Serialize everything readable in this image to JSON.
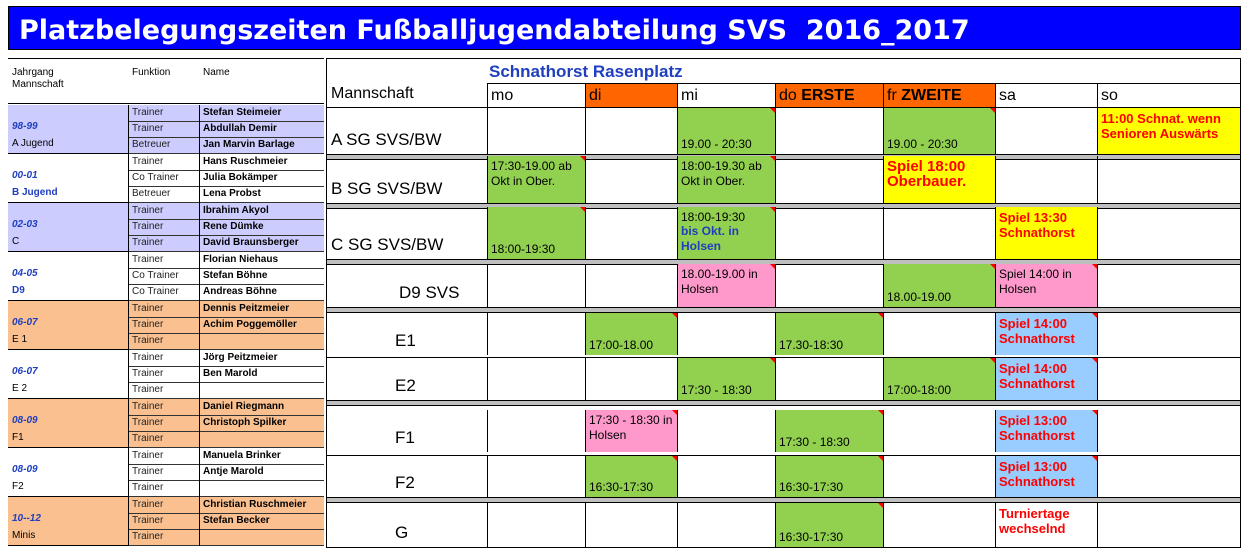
{
  "title": "Platzbelegungszeiten Fußballjugendabteilung SVS  2016_2017",
  "roster": {
    "headers": {
      "col1_line1": "Jahrgang",
      "col1_line2": "Mannschaft",
      "col2": "Funktion",
      "col3": "Name"
    },
    "groups": [
      {
        "year": "98-99",
        "team": "A Jugend",
        "team_blue": false,
        "color": "#ccccff",
        "rows": [
          {
            "funktion": "Trainer",
            "name": "Stefan Steimeier"
          },
          {
            "funktion": "Trainer",
            "name": "Abdullah Demir"
          },
          {
            "funktion": "Betreuer",
            "name": "Jan Marvin Barlage"
          }
        ]
      },
      {
        "year": "00-01",
        "team": "B  Jugend",
        "team_blue": true,
        "color": "#ffffff",
        "rows": [
          {
            "funktion": "Trainer",
            "name": "Hans Ruschmeier"
          },
          {
            "funktion": "Co Trainer",
            "name": "Julia Bokämper"
          },
          {
            "funktion": "Betreuer",
            "name": "Lena Probst"
          }
        ]
      },
      {
        "year": "02-03",
        "team": "C",
        "team_blue": false,
        "color": "#ccccff",
        "rows": [
          {
            "funktion": "Trainer",
            "name": "Ibrahim Akyol"
          },
          {
            "funktion": "Trainer",
            "name": "Rene Dümke"
          },
          {
            "funktion": "Trainer",
            "name": "David Braunsberger"
          }
        ]
      },
      {
        "year": "04-05",
        "team": "D9",
        "team_blue": true,
        "color": "#ffffff",
        "rows": [
          {
            "funktion": "Trainer",
            "name": "Florian Niehaus"
          },
          {
            "funktion": "Co Trainer",
            "name": "Stefan Böhne"
          },
          {
            "funktion": "Co Trainer",
            "name": "Andreas Böhne"
          }
        ]
      },
      {
        "year": "06-07",
        "team": "E 1",
        "team_blue": false,
        "color": "#fac090",
        "rows": [
          {
            "funktion": "Trainer",
            "name": "Dennis Peitzmeier"
          },
          {
            "funktion": "Trainer",
            "name": "Achim Poggemöller"
          },
          {
            "funktion": "Trainer",
            "name": ""
          }
        ]
      },
      {
        "year": "06-07",
        "team": "E 2",
        "team_blue": false,
        "color": "#ffffff",
        "rows": [
          {
            "funktion": "Trainer",
            "name": "Jörg Peitzmeier"
          },
          {
            "funktion": "Trainer",
            "name": "Ben Marold"
          },
          {
            "funktion": "Trainer",
            "name": ""
          }
        ]
      },
      {
        "year": "08-09",
        "team": "F1",
        "team_blue": false,
        "color": "#fac090",
        "rows": [
          {
            "funktion": "Trainer",
            "name": "Daniel Riegmann"
          },
          {
            "funktion": "Trainer",
            "name": "Christoph Spilker"
          },
          {
            "funktion": "Trainer",
            "name": ""
          }
        ]
      },
      {
        "year": "08-09",
        "team": "F2",
        "team_blue": false,
        "color": "#ffffff",
        "rows": [
          {
            "funktion": "Trainer",
            "name": "Manuela Brinker"
          },
          {
            "funktion": "Trainer",
            "name": "Antje Marold"
          },
          {
            "funktion": "Trainer",
            "name": ""
          }
        ]
      },
      {
        "year": "10--12",
        "team": "Minis",
        "team_blue": false,
        "color": "#fac090",
        "rows": [
          {
            "funktion": "Trainer",
            "name": "Christian Ruschmeier"
          },
          {
            "funktion": "Trainer",
            "name": "Stefan Becker"
          },
          {
            "funktion": "Trainer",
            "name": ""
          }
        ]
      }
    ]
  },
  "schedule": {
    "location": "Schnathorst  Rasenplatz",
    "header_team": "Mannschaft",
    "days": [
      {
        "prefix": "mo",
        "extra": "",
        "color": ""
      },
      {
        "prefix": "di",
        "extra": "",
        "color": "#ff6600"
      },
      {
        "prefix": "mi",
        "extra": "",
        "color": ""
      },
      {
        "prefix": "do",
        "extra": "ERSTE",
        "color": "#ff6600"
      },
      {
        "prefix": "fr",
        "extra": "ZWEITE",
        "color": "#ff6600"
      },
      {
        "prefix": "sa",
        "extra": "",
        "color": ""
      },
      {
        "prefix": "so",
        "extra": "",
        "color": ""
      }
    ],
    "rows": [
      {
        "team": "A   SG SVS/BW",
        "cells": [
          {
            "text": "",
            "color": ""
          },
          {
            "text": "",
            "color": ""
          },
          {
            "text": "19.00 - 20:30",
            "color": "green"
          },
          {
            "text": "",
            "color": ""
          },
          {
            "text": "19.00 - 20:30",
            "color": "green"
          },
          {
            "text": "",
            "color": ""
          },
          {
            "text": "11:00 Schnat. wenn Senioren Auswärts",
            "color": "yellow",
            "style": "red-bold"
          }
        ]
      },
      {
        "team": "B   SG SVS/BW",
        "cells": [
          {
            "text": "17:30-19.00 ab Okt in Ober.",
            "color": "green"
          },
          {
            "text": "",
            "color": ""
          },
          {
            "text": "18:00-19.30 ab Okt in Ober.",
            "color": "green"
          },
          {
            "text": "",
            "color": ""
          },
          {
            "text": "Spiel 18:00 Oberbauer.",
            "color": "yellow",
            "style": "red-big"
          },
          {
            "text": "",
            "color": ""
          },
          {
            "text": "",
            "color": ""
          }
        ]
      },
      {
        "team": "C   SG SVS/BW",
        "cells": [
          {
            "text": "18:00-19:30",
            "color": "green"
          },
          {
            "text": "",
            "color": ""
          },
          {
            "text": "18:00-19:30",
            "text2": "bis Okt. in Holsen",
            "color": "green"
          },
          {
            "text": "",
            "color": ""
          },
          {
            "text": "",
            "color": ""
          },
          {
            "text": "Spiel 13:30 Schnathorst",
            "color": "yellow",
            "style": "red-bold"
          },
          {
            "text": "",
            "color": ""
          }
        ]
      },
      {
        "team": "D9 SVS",
        "cells": [
          {
            "text": "",
            "color": ""
          },
          {
            "text": "",
            "color": ""
          },
          {
            "text": "18.00-19.00 in Holsen",
            "color": "pink"
          },
          {
            "text": "",
            "color": ""
          },
          {
            "text": "18.00-19.00",
            "color": "green"
          },
          {
            "text": "Spiel 14:00 in Holsen",
            "color": "pink"
          },
          {
            "text": "",
            "color": ""
          }
        ]
      },
      {
        "team": "E1",
        "cells": [
          {
            "text": "",
            "color": ""
          },
          {
            "text": "17:00-18.00",
            "color": "green"
          },
          {
            "text": "",
            "color": ""
          },
          {
            "text": "17.30-18:30",
            "color": "green"
          },
          {
            "text": "",
            "color": ""
          },
          {
            "text": "Spiel 14:00 Schnathorst",
            "color": "blue",
            "style": "red-bold"
          },
          {
            "text": "",
            "color": ""
          }
        ]
      },
      {
        "team": "E2",
        "cells": [
          {
            "text": "",
            "color": ""
          },
          {
            "text": "",
            "color": ""
          },
          {
            "text": "17:30 - 18:30",
            "color": "green"
          },
          {
            "text": "",
            "color": ""
          },
          {
            "text": "17:00-18:00",
            "color": "green"
          },
          {
            "text": "Spiel 14:00 Schnathorst",
            "color": "blue",
            "style": "red-bold"
          },
          {
            "text": "",
            "color": ""
          }
        ]
      },
      {
        "team": "F1",
        "cells": [
          {
            "text": "",
            "color": ""
          },
          {
            "text": "17:30 - 18:30 in Holsen",
            "color": "pink"
          },
          {
            "text": "",
            "color": ""
          },
          {
            "text": "17:30 - 18:30",
            "color": "green"
          },
          {
            "text": "",
            "color": ""
          },
          {
            "text": "Spiel 13:00 Schnathorst",
            "color": "blue",
            "style": "red-bold"
          },
          {
            "text": "",
            "color": ""
          }
        ]
      },
      {
        "team": "F2",
        "cells": [
          {
            "text": "",
            "color": ""
          },
          {
            "text": "16:30-17:30",
            "color": "green"
          },
          {
            "text": "",
            "color": ""
          },
          {
            "text": "16:30-17:30",
            "color": "green"
          },
          {
            "text": "",
            "color": ""
          },
          {
            "text": "Spiel 13:00 Schnathorst",
            "color": "blue",
            "style": "red-bold"
          },
          {
            "text": "",
            "color": ""
          }
        ]
      },
      {
        "team": "G",
        "cells": [
          {
            "text": "",
            "color": ""
          },
          {
            "text": "",
            "color": ""
          },
          {
            "text": "",
            "color": ""
          },
          {
            "text": "16:30-17:30",
            "color": "green"
          },
          {
            "text": "",
            "color": ""
          },
          {
            "text": "Turniertage wechselnd",
            "color": "",
            "style": "red-bold"
          },
          {
            "text": "",
            "color": ""
          }
        ]
      }
    ]
  }
}
